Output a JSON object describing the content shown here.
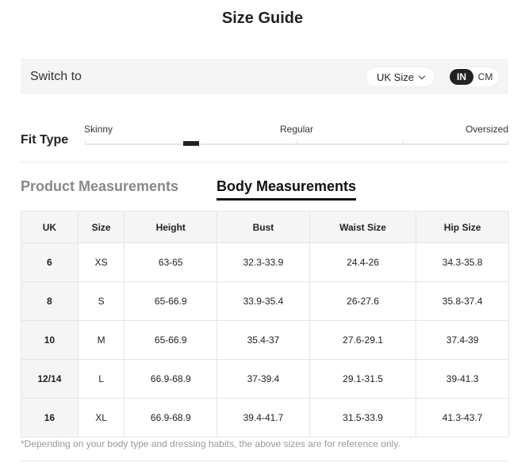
{
  "title": "Size Guide",
  "switch": {
    "label": "Switch to",
    "size_system": "UK Size",
    "units": [
      "IN",
      "CM"
    ],
    "selected_unit": "IN"
  },
  "fit": {
    "label": "Fit Type",
    "ticks": [
      "Skinny",
      "Regular",
      "Oversized"
    ],
    "position": 0.25
  },
  "tabs": [
    {
      "label": "Product Measurements",
      "active": false
    },
    {
      "label": "Body Measurements",
      "active": true
    }
  ],
  "table": {
    "headers": [
      "UK",
      "Size",
      "Height",
      "Bust",
      "Waist Size",
      "Hip Size"
    ],
    "rows": [
      [
        "6",
        "XS",
        "63-65",
        "32.3-33.9",
        "24.4-26",
        "34.3-35.8"
      ],
      [
        "8",
        "S",
        "65-66.9",
        "33.9-35.4",
        "26-27.6",
        "35.8-37.4"
      ],
      [
        "10",
        "M",
        "65-66.9",
        "35.4-37",
        "27.6-29.1",
        "37.4-39"
      ],
      [
        "12/14",
        "L",
        "66.9-68.9",
        "37-39.4",
        "29.1-31.5",
        "39-41.3"
      ],
      [
        "16",
        "XL",
        "66.9-68.9",
        "39.4-41.7",
        "31.5-33.9",
        "41.3-43.7"
      ]
    ]
  },
  "note": "*Depending on your body type and dressing habits, the above sizes are for reference only."
}
